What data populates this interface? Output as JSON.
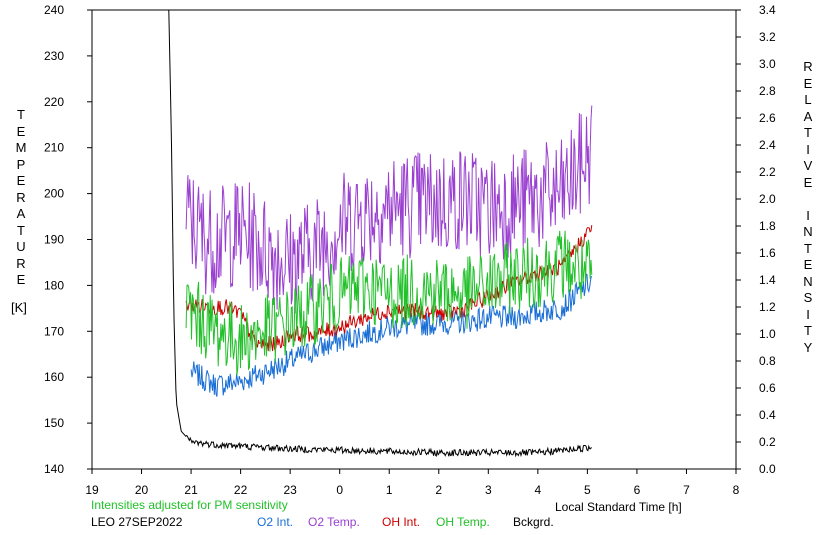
{
  "chart_data": {
    "type": "line",
    "left_axis": {
      "label_letters": [
        "T",
        "E",
        "M",
        "P",
        "E",
        "R",
        "A",
        "T",
        "U",
        "R",
        "E"
      ],
      "unit": "[K]",
      "range": [
        140,
        240
      ],
      "ticks": [
        "140",
        "150",
        "160",
        "170",
        "180",
        "190",
        "200",
        "210",
        "220",
        "230",
        "240"
      ]
    },
    "right_axis": {
      "label_letters": [
        "R",
        "E",
        "L",
        "A",
        "T",
        "I",
        "V",
        "E",
        " ",
        "I",
        "N",
        "T",
        "E",
        "N",
        "S",
        "I",
        "T",
        "Y"
      ],
      "range": [
        0.0,
        3.4
      ],
      "ticks": [
        "0.0",
        "0.2",
        "0.4",
        "0.6",
        "0.8",
        "1.0",
        "1.2",
        "1.4",
        "1.6",
        "1.8",
        "2.0",
        "2.2",
        "2.4",
        "2.6",
        "2.8",
        "3.0",
        "3.2",
        "3.4"
      ]
    },
    "x_axis": {
      "label": "Local Standard Time [h]",
      "ticks": [
        "19",
        "20",
        "21",
        "22",
        "23",
        "0",
        "1",
        "2",
        "3",
        "4",
        "5",
        "6",
        "7",
        "8"
      ]
    },
    "note": "Intensities adjusted for PM sensitivity",
    "station": "LEO 27SEP2022",
    "series": [
      {
        "name": "O2 Int.",
        "color": "#1a6fd6",
        "axis": "right",
        "points": [
          [
            21.0,
            0.72
          ],
          [
            21.5,
            0.62
          ],
          [
            22.0,
            0.65
          ],
          [
            22.5,
            0.72
          ],
          [
            23.0,
            0.8
          ],
          [
            23.5,
            0.88
          ],
          [
            0.0,
            0.95
          ],
          [
            0.5,
            1.0
          ],
          [
            1.0,
            1.05
          ],
          [
            1.5,
            1.07
          ],
          [
            2.0,
            1.08
          ],
          [
            2.5,
            1.09
          ],
          [
            3.0,
            1.12
          ],
          [
            3.5,
            1.12
          ],
          [
            4.0,
            1.16
          ],
          [
            4.5,
            1.2
          ],
          [
            5.1,
            1.4
          ]
        ]
      },
      {
        "name": "O2 Temp.",
        "color": "#9a40d0",
        "axis": "left",
        "points": [
          [
            20.9,
            195
          ],
          [
            21.3,
            190
          ],
          [
            21.6,
            190
          ],
          [
            22.0,
            192
          ],
          [
            22.5,
            188
          ],
          [
            23.0,
            185
          ],
          [
            23.5,
            188
          ],
          [
            0.0,
            193
          ],
          [
            0.5,
            196
          ],
          [
            1.0,
            197
          ],
          [
            1.5,
            198
          ],
          [
            2.0,
            198
          ],
          [
            2.5,
            199
          ],
          [
            3.0,
            197
          ],
          [
            3.5,
            198
          ],
          [
            4.0,
            199
          ],
          [
            4.5,
            200
          ],
          [
            5.1,
            210
          ]
        ]
      },
      {
        "name": "OH Int.",
        "color": "#cc0000",
        "axis": "right",
        "points": [
          [
            20.9,
            1.22
          ],
          [
            21.3,
            1.2
          ],
          [
            21.7,
            1.2
          ],
          [
            22.0,
            1.15
          ],
          [
            22.3,
            0.92
          ],
          [
            22.8,
            0.93
          ],
          [
            23.0,
            1.0
          ],
          [
            23.5,
            1.0
          ],
          [
            0.0,
            1.05
          ],
          [
            0.5,
            1.12
          ],
          [
            1.0,
            1.18
          ],
          [
            1.5,
            1.17
          ],
          [
            2.0,
            1.15
          ],
          [
            2.5,
            1.18
          ],
          [
            3.0,
            1.28
          ],
          [
            3.5,
            1.38
          ],
          [
            4.0,
            1.45
          ],
          [
            4.5,
            1.5
          ],
          [
            5.1,
            1.8
          ]
        ]
      },
      {
        "name": "OH Temp.",
        "color": "#22c02a",
        "axis": "left",
        "points": [
          [
            20.9,
            175
          ],
          [
            21.5,
            170
          ],
          [
            22.0,
            168
          ],
          [
            22.5,
            170
          ],
          [
            23.0,
            172
          ],
          [
            23.5,
            175
          ],
          [
            0.0,
            178
          ],
          [
            0.5,
            180
          ],
          [
            1.0,
            178
          ],
          [
            1.5,
            179
          ],
          [
            2.0,
            179
          ],
          [
            2.5,
            178
          ],
          [
            3.0,
            180
          ],
          [
            3.5,
            182
          ],
          [
            4.0,
            183
          ],
          [
            4.5,
            185
          ],
          [
            5.1,
            182
          ]
        ]
      },
      {
        "name": "Bckgrd.",
        "color": "#000000",
        "axis": "right",
        "points": [
          [
            20.55,
            3.4
          ],
          [
            20.6,
            2.5
          ],
          [
            20.65,
            1.2
          ],
          [
            20.7,
            0.5
          ],
          [
            20.8,
            0.28
          ],
          [
            21.0,
            0.2
          ],
          [
            21.5,
            0.18
          ],
          [
            22.0,
            0.17
          ],
          [
            22.5,
            0.16
          ],
          [
            23.0,
            0.15
          ],
          [
            0.0,
            0.14
          ],
          [
            1.0,
            0.13
          ],
          [
            2.0,
            0.12
          ],
          [
            3.0,
            0.12
          ],
          [
            4.0,
            0.12
          ],
          [
            4.5,
            0.14
          ],
          [
            5.1,
            0.16
          ]
        ]
      }
    ]
  }
}
